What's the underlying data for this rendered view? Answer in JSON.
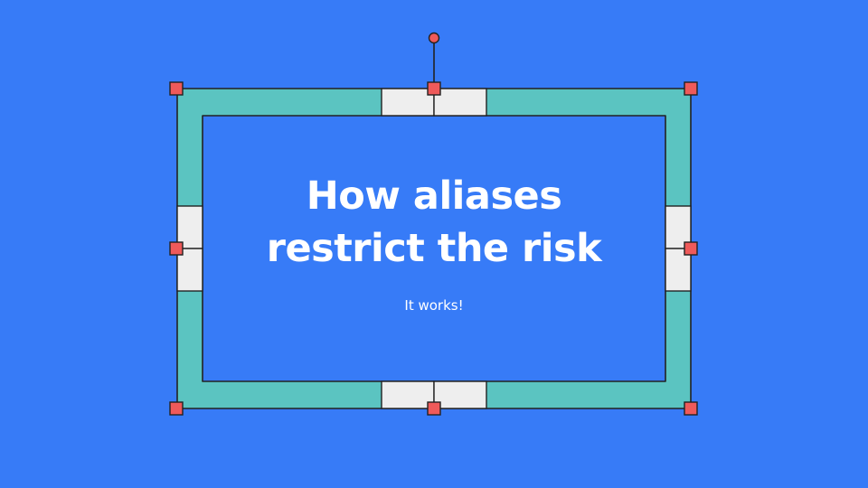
{
  "slide": {
    "title_line1": "How aliases",
    "title_line2": "restrict the risk",
    "subtitle": "It works!"
  },
  "colors": {
    "background": "#377bf7",
    "frame_fill": "#5bc4c1",
    "panel_fill": "#eeeeee",
    "outline": "#222222",
    "handle_fill": "#ef5a5a",
    "text": "#ffffff"
  },
  "icons": {
    "rotate_handle": "rotate-handle-icon",
    "resize_handle": "resize-handle-icon"
  }
}
